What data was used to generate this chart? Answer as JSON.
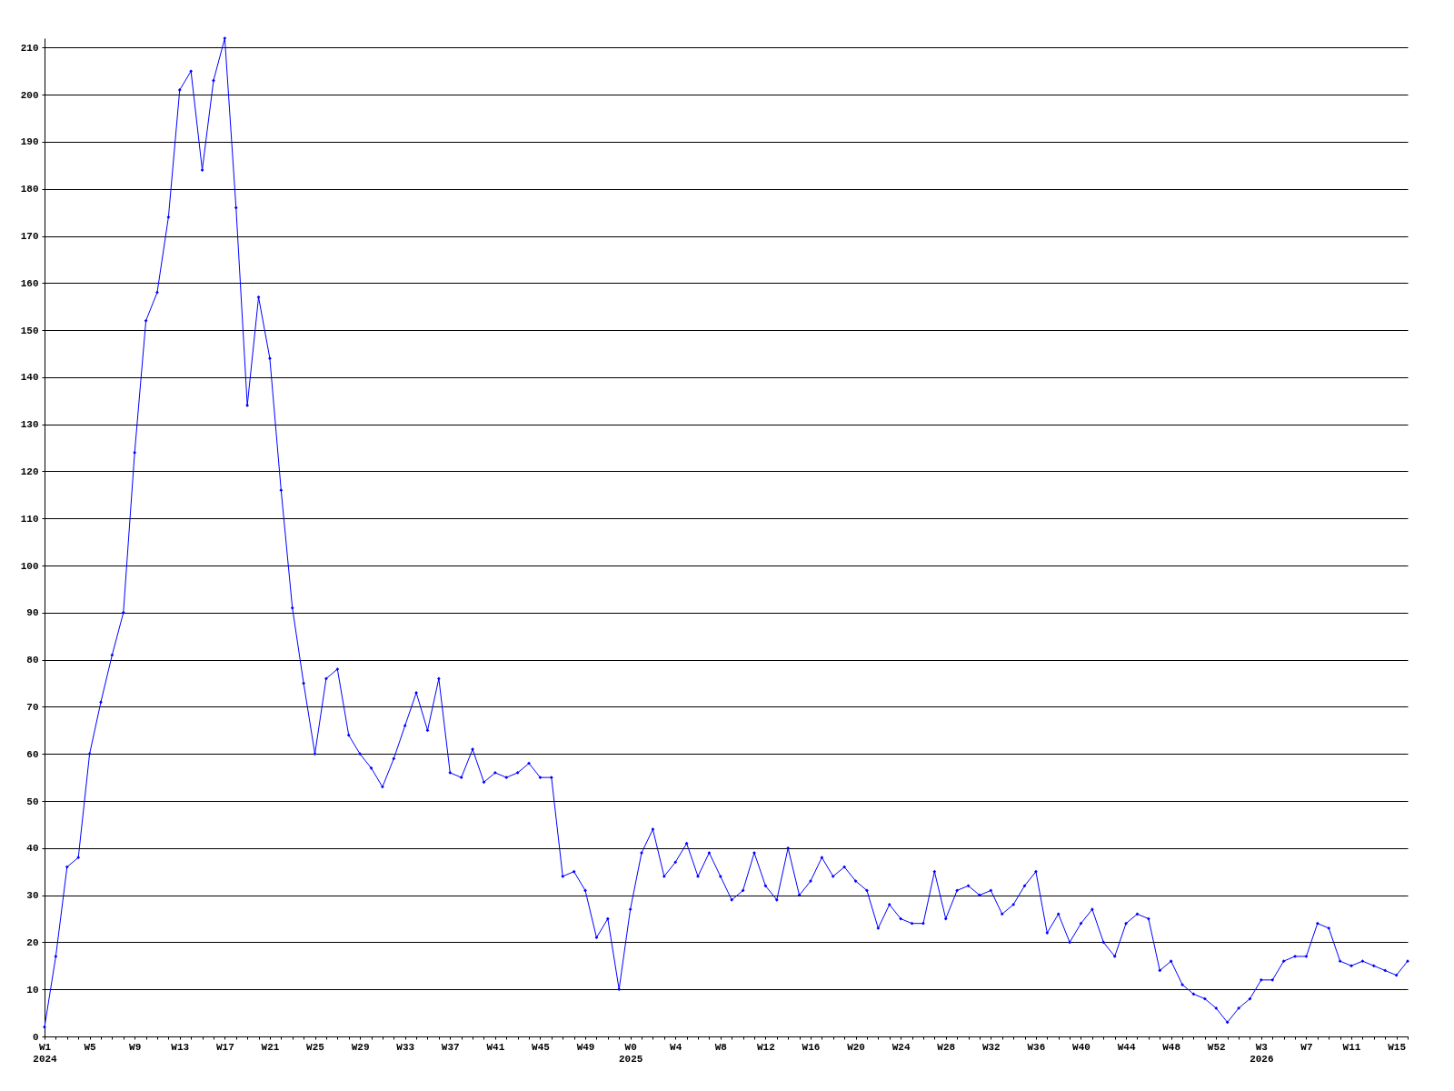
{
  "chart_data": {
    "type": "line",
    "categories": [
      "W1\n2024",
      null,
      null,
      null,
      "W5",
      null,
      null,
      null,
      "W9",
      null,
      null,
      null,
      "W13",
      null,
      null,
      null,
      "W17",
      null,
      null,
      null,
      "W21",
      null,
      null,
      null,
      "W25",
      null,
      null,
      null,
      "W29",
      null,
      null,
      null,
      "W33",
      null,
      null,
      null,
      "W37",
      null,
      null,
      null,
      "W41",
      null,
      null,
      null,
      "W45",
      null,
      null,
      null,
      "W49",
      null,
      null,
      null,
      "W0\n2025",
      null,
      null,
      null,
      "W4",
      null,
      null,
      null,
      "W8",
      null,
      null,
      null,
      "W12",
      null,
      null,
      null,
      "W16",
      null,
      null,
      null,
      "W20",
      null,
      null,
      null,
      "W24",
      null,
      null,
      null,
      "W28",
      null,
      null,
      null,
      "W32",
      null,
      null,
      null,
      "W36",
      null,
      null,
      null,
      "W40",
      null,
      null,
      null,
      "W44",
      null,
      null,
      null,
      "W48",
      null,
      null,
      null,
      "W52",
      null,
      null,
      null,
      "W3\n2026",
      null,
      null,
      null,
      "W7",
      null,
      null,
      null,
      "W11",
      null,
      null,
      null,
      "W15",
      null
    ],
    "series": [
      {
        "color": "#0000ff",
        "values": [
          2,
          17,
          36,
          38,
          60,
          71,
          81,
          90,
          124,
          152,
          158,
          174,
          201,
          205,
          184,
          203,
          212,
          176,
          134,
          157,
          144,
          116,
          91,
          75,
          60,
          76,
          78,
          64,
          60,
          57,
          53,
          59,
          66,
          73,
          65,
          76,
          56,
          55,
          61,
          54,
          56,
          55,
          56,
          58,
          55,
          55,
          34,
          35,
          31,
          21,
          25,
          10,
          27,
          39,
          44,
          34,
          37,
          41,
          34,
          39,
          34,
          29,
          31,
          39,
          32,
          29,
          40,
          30,
          33,
          38,
          34,
          36,
          33,
          31,
          23,
          28,
          25,
          24,
          24,
          35,
          25,
          31,
          32,
          30,
          31,
          26,
          28,
          32,
          35,
          22,
          26,
          20,
          24,
          27,
          20,
          17,
          24,
          26,
          25,
          14,
          16,
          11,
          9,
          8,
          6,
          3,
          6,
          8,
          12,
          12,
          16,
          17,
          17,
          24,
          23,
          16,
          15,
          16,
          15,
          14,
          13,
          16
        ]
      }
    ],
    "ylim": [
      0,
      212
    ],
    "yticks": [
      0,
      10,
      20,
      30,
      40,
      50,
      60,
      70,
      80,
      90,
      100,
      110,
      120,
      130,
      140,
      150,
      160,
      170,
      180,
      190,
      200,
      210
    ],
    "grid": "y",
    "marker": "diamond",
    "line_style": "solid"
  }
}
